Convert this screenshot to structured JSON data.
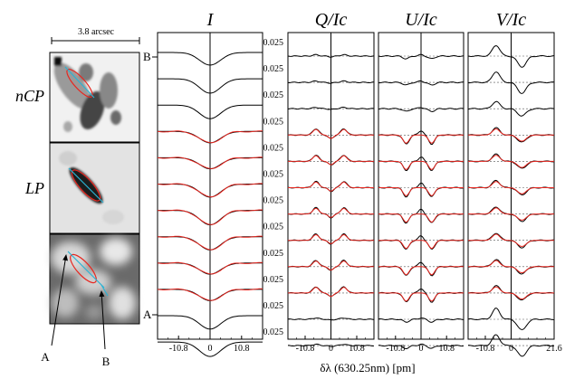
{
  "images": {
    "scale_label": "3.8 arcsec",
    "panel_labels": [
      "nCP",
      "LP",
      ""
    ],
    "pointer_labels": [
      "A",
      "B"
    ]
  },
  "chart_data": {
    "type": "line",
    "xlabel": "δλ (630.25nm) [pm]",
    "panels": [
      {
        "title": "I",
        "xticks": [
          "-10.8",
          "0",
          "10.8"
        ],
        "yticks": []
      },
      {
        "title": "Q/Ic",
        "xticks": [
          "-10.8",
          "0",
          "10.8"
        ],
        "yticks": [
          "0.025",
          "0.025",
          "0.025",
          "0.025",
          "0.025",
          "0.025",
          "0.025",
          "0.025",
          "0.025",
          "0.025",
          "0.025",
          "0.025"
        ]
      },
      {
        "title": "U/Ic",
        "xticks": [
          "-10.8",
          "0",
          "10.8"
        ],
        "yticks": []
      },
      {
        "title": "V/Ic",
        "xticks": [
          "-10.8",
          "0",
          "21.6"
        ],
        "yticks": []
      }
    ],
    "row_labels": {
      "top": "B",
      "bottom": "A"
    },
    "n_rows": 12,
    "fit_rows": [
      3,
      4,
      5,
      6,
      7,
      8,
      9
    ],
    "colors": {
      "observed": "#000000",
      "fit": "#e8261f",
      "overlay": "#2bb3d4"
    }
  }
}
